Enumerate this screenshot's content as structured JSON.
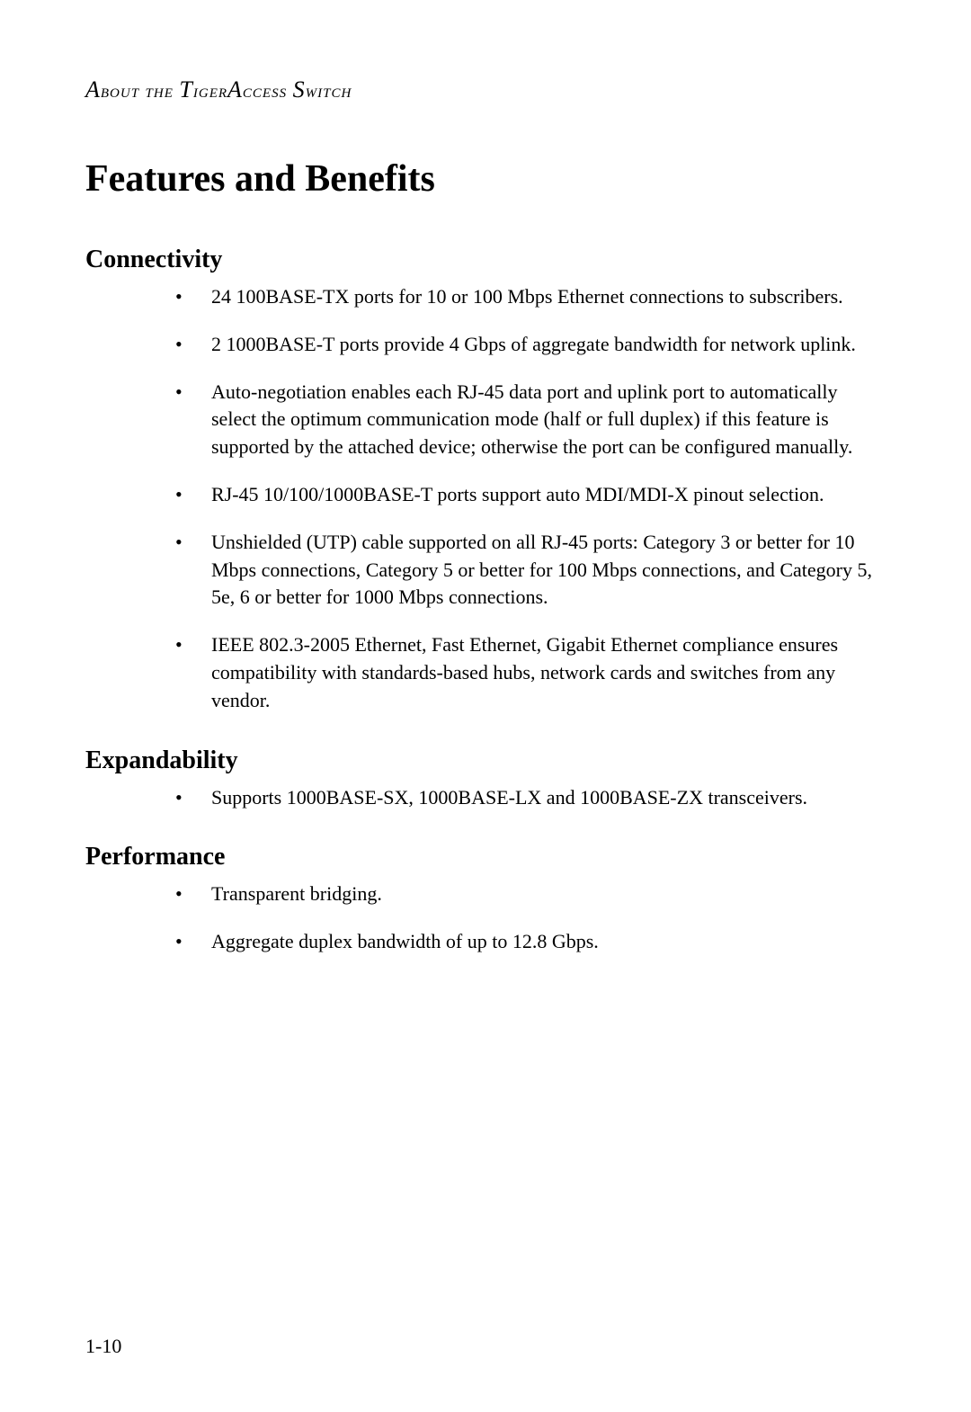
{
  "header": {
    "text": "About the TigerAccess Switch"
  },
  "mainTitle": "Features and Benefits",
  "sections": [
    {
      "title": "Connectivity",
      "items": [
        "24 100BASE-TX ports for 10 or 100 Mbps Ethernet connections to subscribers.",
        "2 1000BASE-T ports provide 4 Gbps of aggregate bandwidth for network uplink.",
        "Auto-negotiation enables each RJ-45 data port and uplink port to automatically select the optimum communication mode (half or full duplex) if this feature is supported by the attached device; otherwise the port can be configured manually.",
        "RJ-45 10/100/1000BASE-T ports support auto MDI/MDI-X pinout selection.",
        "Unshielded (UTP) cable supported on all RJ-45 ports: Category 3 or better for 10 Mbps connections, Category 5 or better for 100 Mbps connections, and Category 5, 5e, 6 or better for 1000 Mbps connections.",
        "IEEE 802.3-2005 Ethernet, Fast Ethernet, Gigabit Ethernet compliance ensures compatibility with standards-based hubs, network cards and switches from any vendor."
      ]
    },
    {
      "title": "Expandability",
      "items": [
        "Supports 1000BASE-SX, 1000BASE-LX and 1000BASE-ZX transceivers."
      ]
    },
    {
      "title": "Performance",
      "items": [
        "Transparent bridging.",
        "Aggregate duplex bandwidth of up to 12.8 Gbps."
      ]
    }
  ],
  "pageNumber": "1-10",
  "styling": {
    "backgroundColor": "#ffffff",
    "textColor": "#000000",
    "mainTitleFontSize": 42,
    "sectionTitleFontSize": 28,
    "bodyFontSize": 22,
    "headerFontSize": 22
  }
}
